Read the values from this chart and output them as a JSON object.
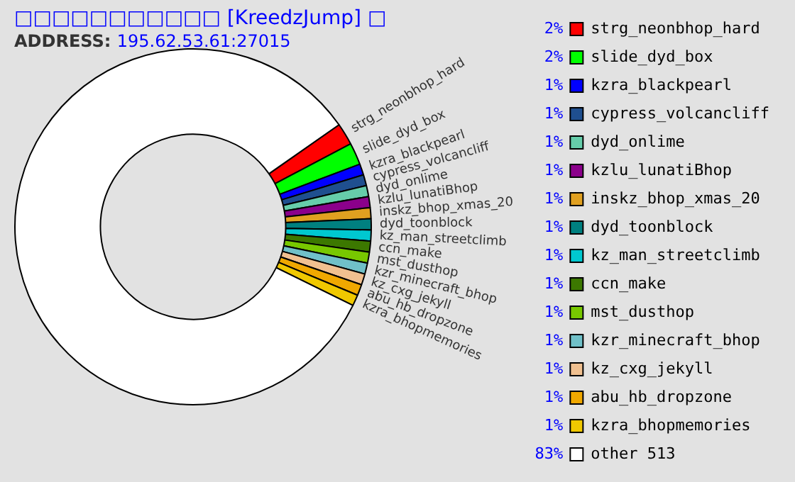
{
  "chart_data": {
    "type": "donut",
    "title": "□□□□□□□□□□□ [KreedzJump] □",
    "subtitle": "ADDRESS: 195.62.53.61:27015",
    "categories": [
      "strg_neonbhop_hard",
      "slide_dyd_box",
      "kzra_blackpearl",
      "cypress_volcancliff",
      "dyd_onlime",
      "kzlu_lunatiBhop",
      "inskz_bhop_xmas_20",
      "dyd_toonblock",
      "kz_man_streetclimb",
      "ccn_make",
      "mst_dusthop",
      "kzr_minecraft_bhop",
      "kz_cxg_jekyll",
      "abu_hb_dropzone",
      "kzra_bhopmemories",
      "other 513"
    ],
    "values": [
      2,
      2,
      1,
      1,
      1,
      1,
      1,
      1,
      1,
      1,
      1,
      1,
      1,
      1,
      1,
      83
    ],
    "value_labels": [
      "2%",
      "2%",
      "1%",
      "1%",
      "1%",
      "1%",
      "1%",
      "1%",
      "1%",
      "1%",
      "1%",
      "1%",
      "1%",
      "1%",
      "1%",
      "83%"
    ],
    "colors": [
      "#ff0000",
      "#00ff00",
      "#0000ff",
      "#1f4f8f",
      "#66cdaa",
      "#8b008b",
      "#e0a020",
      "#008080",
      "#00c8d0",
      "#3c7800",
      "#78c800",
      "#70c0c8",
      "#f0c090",
      "#f0a800",
      "#f0c800",
      "#ffffff"
    ],
    "legend": "right"
  }
}
